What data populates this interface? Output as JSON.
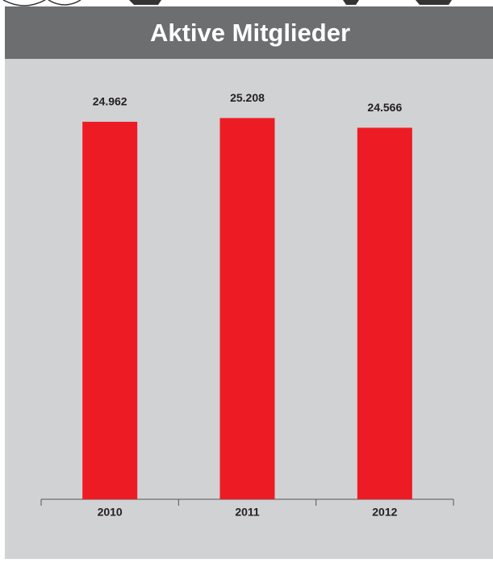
{
  "chart_data": {
    "type": "bar",
    "title": "Aktive Mitglieder",
    "categories": [
      "2010",
      "2011",
      "2012"
    ],
    "values": [
      24962,
      25208,
      24566
    ],
    "value_labels": [
      "24.962",
      "25.208",
      "24.566"
    ],
    "color": "#ed1c24",
    "ylim": [
      0,
      26400
    ]
  }
}
